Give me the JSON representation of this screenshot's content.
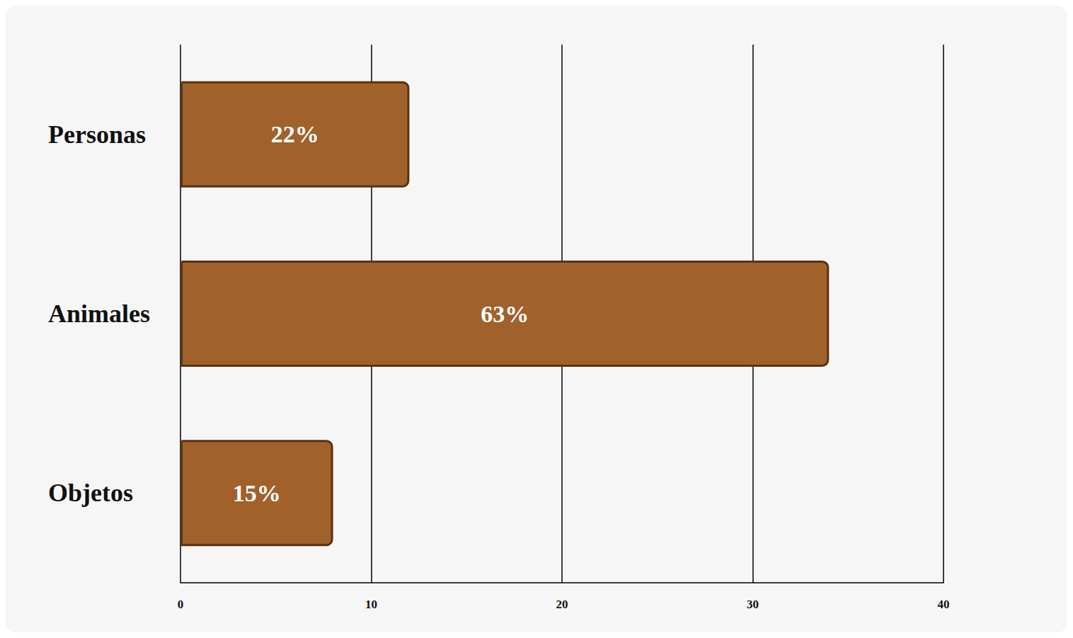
{
  "chart_data": {
    "type": "bar",
    "orientation": "horizontal",
    "categories": [
      "Personas",
      "Animales",
      "Objetos"
    ],
    "values": [
      12,
      34,
      8
    ],
    "bar_texts": [
      "22%",
      "63%",
      "15%"
    ],
    "color": "#a0612b",
    "xlim": [
      0,
      40
    ],
    "xticks": [
      0,
      10,
      20,
      30,
      40
    ],
    "grid": true
  }
}
